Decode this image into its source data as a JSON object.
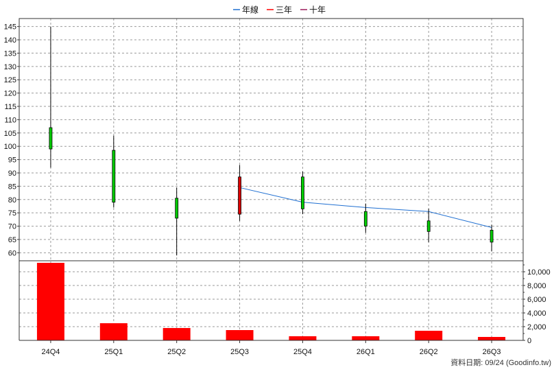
{
  "legend": [
    {
      "label": "年線",
      "color": "#1f6fd1"
    },
    {
      "label": "三年",
      "color": "#ff0000"
    },
    {
      "label": "十年",
      "color": "#9b1b5a"
    }
  ],
  "footer": "資料日期: 09/24  (Goodinfo.tw)",
  "chart_data": [
    {
      "type": "candlestick",
      "categories": [
        "24Q4",
        "25Q1",
        "25Q2",
        "25Q3",
        "25Q4",
        "26Q1",
        "26Q2",
        "26Q3"
      ],
      "ohlc": [
        {
          "open": 99,
          "high": 145,
          "low": 92,
          "close": 107,
          "color": "#00cc00"
        },
        {
          "open": 79,
          "high": 104,
          "low": 77,
          "close": 98.5,
          "color": "#00cc00"
        },
        {
          "open": 73,
          "high": 84.5,
          "low": 59,
          "close": 80.5,
          "color": "#00cc00"
        },
        {
          "open": 88.5,
          "high": 93,
          "low": 72,
          "close": 74.5,
          "color": "#dd0000"
        },
        {
          "open": 76.5,
          "high": 90.5,
          "low": 74.5,
          "close": 88.5,
          "color": "#00cc00"
        },
        {
          "open": 70,
          "high": 78.5,
          "low": 67.5,
          "close": 75.5,
          "color": "#00cc00"
        },
        {
          "open": 68,
          "high": 76.5,
          "low": 64,
          "close": 72,
          "color": "#00cc00"
        },
        {
          "open": 64,
          "high": 70.5,
          "low": 60.5,
          "close": 68.5,
          "color": "#00cc00"
        }
      ],
      "series": [
        {
          "name": "年線",
          "color": "#1f6fd1",
          "values": [
            null,
            null,
            null,
            84.5,
            79,
            77,
            75.5,
            69.5
          ]
        }
      ],
      "y_ticks": [
        60,
        65,
        70,
        75,
        80,
        85,
        90,
        95,
        100,
        105,
        110,
        115,
        120,
        125,
        130,
        135,
        140,
        145
      ],
      "ylim": [
        57,
        148
      ],
      "grid": true,
      "legend_position": "top"
    },
    {
      "type": "bar",
      "categories": [
        "24Q4",
        "25Q1",
        "25Q2",
        "25Q3",
        "25Q4",
        "26Q1",
        "26Q2",
        "26Q3"
      ],
      "values": [
        11300,
        2500,
        1800,
        1500,
        600,
        600,
        1400,
        500
      ],
      "color": "#ff0000",
      "y_ticks": [
        "0",
        "2,000",
        "4,000",
        "6,000",
        "8,000",
        "10,000"
      ],
      "y_tick_values": [
        0,
        2000,
        4000,
        6000,
        8000,
        10000
      ],
      "ylim": [
        0,
        11600
      ],
      "grid": true
    }
  ]
}
